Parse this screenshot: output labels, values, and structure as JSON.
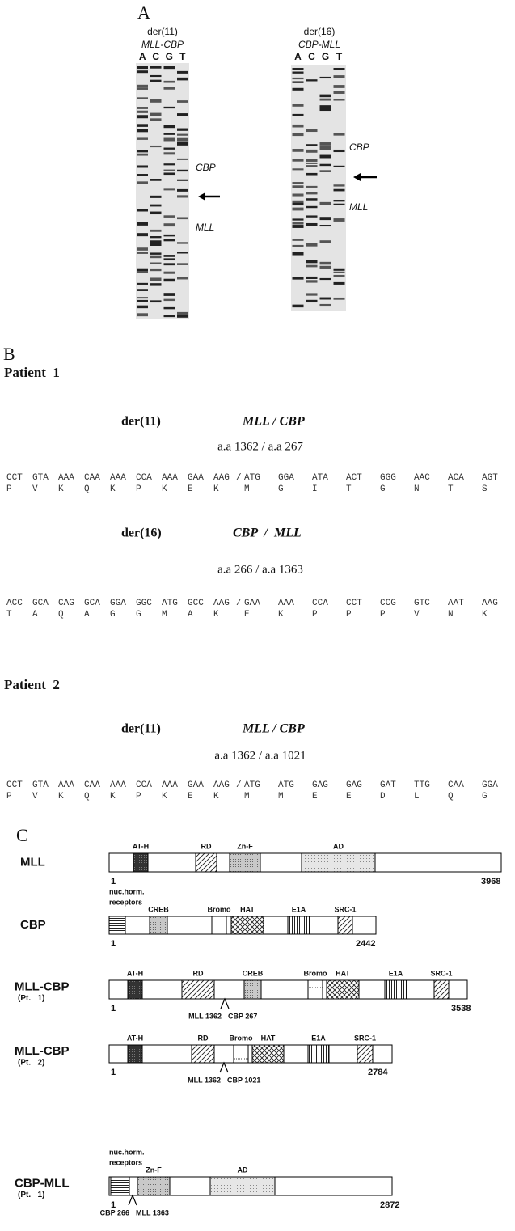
{
  "panel_a": {
    "label": "A",
    "gels": [
      {
        "derivative": "der(11)",
        "fusion": "MLL-CBP",
        "lanes": [
          "A",
          "C",
          "G",
          "T"
        ],
        "annotations": [
          "CBP",
          "MLL"
        ]
      },
      {
        "derivative": "der(16)",
        "fusion": "CBP-MLL",
        "lanes": [
          "A",
          "C",
          "G",
          "T"
        ],
        "annotations": [
          "CBP",
          "MLL"
        ]
      }
    ]
  },
  "panel_b": {
    "label": "B",
    "separator": "/",
    "patients": [
      {
        "name": "Patient  1",
        "junctions": [
          {
            "derivative": "der(11)",
            "fusion": "MLL / CBP",
            "positions": "a.a 1362 / a.a 267",
            "codons": [
              [
                "CCT",
                "GTA",
                "AAA",
                "CAA",
                "AAA",
                "CCA",
                "AAA",
                "GAA",
                "AAG"
              ],
              [
                "ATG",
                "GGA",
                "ATA",
                "ACT",
                "GGG",
                "AAC",
                "ACA",
                "AGT"
              ]
            ],
            "amino_acids": [
              [
                "P",
                "V",
                "K",
                "Q",
                "K",
                "P",
                "K",
                "E",
                "K"
              ],
              [
                "M",
                "G",
                "I",
                "T",
                "G",
                "N",
                "T",
                "S"
              ]
            ]
          },
          {
            "derivative": "der(16)",
            "fusion": "CBP  /  MLL",
            "positions": "a.a 266 / a.a 1363",
            "codons": [
              [
                "ACC",
                "GCA",
                "CAG",
                "GCA",
                "GGA",
                "GGC",
                "ATG",
                "GCC",
                "AAG"
              ],
              [
                "GAA",
                "AAA",
                "CCA",
                "CCT",
                "CCG",
                "GTC",
                "AAT",
                "AAG"
              ]
            ],
            "amino_acids": [
              [
                "T",
                "A",
                "Q",
                "A",
                "G",
                "G",
                "M",
                "A",
                "K"
              ],
              [
                "E",
                "K",
                "P",
                "P",
                "P",
                "V",
                "N",
                "K"
              ]
            ]
          }
        ]
      },
      {
        "name": "Patient  2",
        "junctions": [
          {
            "derivative": "der(11)",
            "fusion": "MLL / CBP",
            "positions": "a.a 1362 / a.a 1021",
            "codons": [
              [
                "CCT",
                "GTA",
                "AAA",
                "CAA",
                "AAA",
                "CCA",
                "AAA",
                "GAA",
                "AAG"
              ],
              [
                "ATG",
                "ATG",
                "GAG",
                "GAG",
                "GAT",
                "TTG",
                "CAA",
                "GGA"
              ]
            ],
            "amino_acids": [
              [
                "P",
                "V",
                "K",
                "Q",
                "K",
                "P",
                "K",
                "E",
                "K"
              ],
              [
                "M",
                "M",
                "E",
                "E",
                "D",
                "L",
                "Q",
                "G"
              ]
            ]
          }
        ]
      }
    ]
  },
  "panel_c": {
    "label": "C",
    "proteins": [
      {
        "name": "MLL",
        "start": 1,
        "end": 3968,
        "domains": [
          "AT-H",
          "RD",
          "Zn-F",
          "AD"
        ]
      },
      {
        "name": "CBP",
        "start": 1,
        "end": 2442,
        "domains": [
          [
            "nuc.horm.",
            "receptors"
          ],
          "CREB",
          "Bromo",
          "HAT",
          "E1A",
          "SRC-1"
        ]
      },
      {
        "name": "MLL-CBP",
        "patient": "(Pt.   1)",
        "start": 1,
        "end": 3538,
        "domains": [
          "AT-H",
          "RD",
          "CREB",
          "Bromo",
          "HAT",
          "E1A",
          "SRC-1"
        ],
        "breakpoint": [
          "MLL 1362",
          "CBP 267"
        ]
      },
      {
        "name": "MLL-CBP",
        "patient": "(Pt.   2)",
        "start": 1,
        "end": 2784,
        "domains": [
          "AT-H",
          "RD",
          "Bromo",
          "HAT",
          "E1A",
          "SRC-1"
        ],
        "breakpoint": [
          "MLL 1362",
          "CBP 1021"
        ]
      },
      {
        "name": "CBP-MLL",
        "patient": "(Pt.   1)",
        "start": 1,
        "end": 2872,
        "domains": [
          [
            "nuc.horm.",
            "receptors"
          ],
          "Zn-F",
          "AD"
        ],
        "breakpoint": [
          "CBP 266",
          "MLL 1363"
        ]
      }
    ]
  }
}
